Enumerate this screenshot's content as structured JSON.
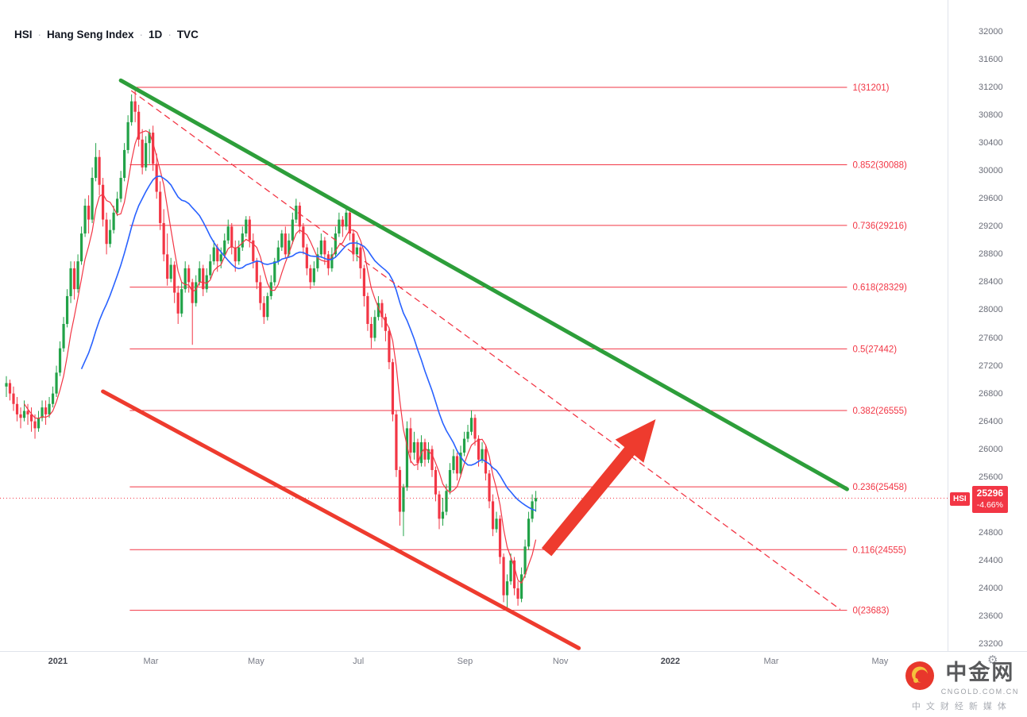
{
  "title": {
    "symbol": "HSI",
    "separator": "·",
    "name": "Hang Seng Index",
    "interval": "1D",
    "exchange": "TVC"
  },
  "watermark": {
    "brand": "中金网",
    "domain": "CNGOLD.COM.CN",
    "tagline": "中文财经新媒体"
  },
  "icons": {
    "gear": "⚙"
  },
  "chart_data": {
    "type": "candlestick",
    "title": "HSI Hang Seng Index Daily with Fibonacci retracement and trend channel",
    "y_axis": {
      "min": 23200,
      "max": 32000,
      "tick_step": 400
    },
    "x_axis": {
      "ticks": [
        {
          "label": "2021",
          "i": 14.4
        },
        {
          "label": "Mar",
          "i": 40.4
        },
        {
          "label": "May",
          "i": 69.8
        },
        {
          "label": "Jul",
          "i": 98.4
        },
        {
          "label": "Sep",
          "i": 128.2
        },
        {
          "label": "Nov",
          "i": 154.9
        },
        {
          "label": "2022",
          "i": 185.6
        },
        {
          "label": "Mar",
          "i": 213.8
        },
        {
          "label": "May",
          "i": 244.2
        }
      ]
    },
    "colors": {
      "up": "#22a248",
      "down": "#f23645",
      "fib": "#f23645",
      "arrow": "#ee3b2e"
    },
    "fib_span_i": [
      34.5,
      235
    ],
    "fib_levels": [
      {
        "label": "1(31201)",
        "value": 31201
      },
      {
        "label": "0.852(30088)",
        "value": 30088
      },
      {
        "label": "0.736(29216)",
        "value": 29216
      },
      {
        "label": "0.618(28329)",
        "value": 28329
      },
      {
        "label": "0.5(27442)",
        "value": 27442
      },
      {
        "label": "0.382(26555)",
        "value": 26555
      },
      {
        "label": "0.236(25458)",
        "value": 25458
      },
      {
        "label": "0.116(24555)",
        "value": 24555
      },
      {
        "label": "0(23683)",
        "value": 23683
      }
    ],
    "trendlines": [
      {
        "name": "green-downtrend-line",
        "color": "#2d9e3a",
        "width": 5,
        "from": {
          "i": 32,
          "p": 31300
        },
        "to": {
          "i": 235,
          "p": 25425
        }
      },
      {
        "name": "red-dashed-trendline",
        "color": "#f23645",
        "width": 1.3,
        "dash": "7 6",
        "from": {
          "i": 35,
          "p": 31150
        },
        "to": {
          "i": 233,
          "p": 23700
        }
      },
      {
        "name": "red-channel-line",
        "color": "#ee3b2e",
        "width": 5,
        "from": {
          "i": 27,
          "p": 26830
        },
        "to": {
          "i": 160,
          "p": 23140
        }
      }
    ],
    "arrow": {
      "from": {
        "i": 151,
        "p": 24520
      },
      "to": {
        "i": 181.5,
        "p": 26430
      }
    },
    "last_price": {
      "tag": "HSI",
      "value": 25296,
      "change_pct": "-4.66%"
    },
    "ma_overlays": [
      {
        "name": "ma-fast-line",
        "period": 6,
        "color": "#f23645",
        "width": 1.2
      },
      {
        "name": "ma-slow-line",
        "period": 22,
        "color": "#2962ff",
        "width": 1.6
      }
    ],
    "ohlc": [
      [
        26900,
        27050,
        26750,
        26950
      ],
      [
        26950,
        27000,
        26700,
        26800
      ],
      [
        26800,
        26900,
        26550,
        26650
      ],
      [
        26650,
        26750,
        26400,
        26500
      ],
      [
        26500,
        26600,
        26300,
        26450
      ],
      [
        26450,
        26700,
        26400,
        26550
      ],
      [
        26550,
        26650,
        26350,
        26500
      ],
      [
        26500,
        26600,
        26250,
        26400
      ],
      [
        26400,
        26500,
        26150,
        26300
      ],
      [
        26300,
        26550,
        26250,
        26450
      ],
      [
        26450,
        26700,
        26400,
        26600
      ],
      [
        26600,
        26700,
        26350,
        26500
      ],
      [
        26500,
        26750,
        26450,
        26650
      ],
      [
        26650,
        26900,
        26600,
        26800
      ],
      [
        26800,
        27200,
        26750,
        27100
      ],
      [
        27100,
        27550,
        27050,
        27450
      ],
      [
        27450,
        27900,
        27400,
        27800
      ],
      [
        27800,
        28300,
        27750,
        28200
      ],
      [
        28200,
        28700,
        28100,
        28600
      ],
      [
        28600,
        28700,
        28150,
        28300
      ],
      [
        28300,
        28800,
        28250,
        28700
      ],
      [
        28700,
        29200,
        28650,
        29100
      ],
      [
        29100,
        29600,
        29050,
        29500
      ],
      [
        29500,
        29650,
        29100,
        29300
      ],
      [
        29300,
        30050,
        29250,
        29900
      ],
      [
        29900,
        30400,
        29850,
        30200
      ],
      [
        30200,
        30300,
        29650,
        29800
      ],
      [
        29800,
        29900,
        29200,
        29300
      ],
      [
        29300,
        29400,
        28800,
        28950
      ],
      [
        28950,
        29300,
        28900,
        29150
      ],
      [
        29150,
        29500,
        29100,
        29400
      ],
      [
        29400,
        29700,
        29350,
        29600
      ],
      [
        29600,
        30000,
        29550,
        29900
      ],
      [
        29900,
        30400,
        29850,
        30300
      ],
      [
        30300,
        30800,
        30250,
        30700
      ],
      [
        30700,
        31100,
        30650,
        31000
      ],
      [
        31000,
        31201,
        30700,
        30850
      ],
      [
        30850,
        30950,
        30350,
        30450
      ],
      [
        30450,
        30600,
        29950,
        30050
      ],
      [
        30050,
        30500,
        30000,
        30400
      ],
      [
        30400,
        30600,
        30100,
        30550
      ],
      [
        30550,
        30650,
        30000,
        30100
      ],
      [
        30100,
        30250,
        29600,
        29700
      ],
      [
        29700,
        29850,
        29150,
        29250
      ],
      [
        29250,
        29450,
        28700,
        28800
      ],
      [
        28800,
        29100,
        28350,
        28450
      ],
      [
        28450,
        28750,
        28400,
        28650
      ],
      [
        28650,
        28700,
        28100,
        28250
      ],
      [
        28250,
        28350,
        27800,
        27950
      ],
      [
        27950,
        28400,
        27900,
        28300
      ],
      [
        28300,
        28700,
        28250,
        28600
      ],
      [
        28600,
        28650,
        28250,
        28400
      ],
      [
        28400,
        28450,
        27500,
        28100
      ],
      [
        28100,
        28500,
        28050,
        28400
      ],
      [
        28400,
        28700,
        28350,
        28600
      ],
      [
        28600,
        28650,
        28200,
        28300
      ],
      [
        28300,
        28600,
        28250,
        28500
      ],
      [
        28500,
        28800,
        28450,
        28700
      ],
      [
        28700,
        29000,
        28650,
        28900
      ],
      [
        28900,
        28950,
        28550,
        28700
      ],
      [
        28700,
        28900,
        28600,
        28800
      ],
      [
        28800,
        29100,
        28750,
        29000
      ],
      [
        29000,
        29300,
        28950,
        29200
      ],
      [
        29200,
        29250,
        28800,
        28900
      ],
      [
        28900,
        29000,
        28550,
        28700
      ],
      [
        28700,
        29000,
        28650,
        28900
      ],
      [
        28900,
        29200,
        28850,
        29100
      ],
      [
        29100,
        29350,
        29050,
        29300
      ],
      [
        29300,
        29350,
        28900,
        29000
      ],
      [
        29000,
        29100,
        28600,
        28700
      ],
      [
        28700,
        28750,
        28300,
        28400
      ],
      [
        28400,
        28500,
        28000,
        28100
      ],
      [
        28100,
        28200,
        27800,
        27900
      ],
      [
        27900,
        28250,
        27850,
        28200
      ],
      [
        28200,
        28500,
        28150,
        28400
      ],
      [
        28400,
        28750,
        28350,
        28700
      ],
      [
        28700,
        29000,
        28650,
        28900
      ],
      [
        28900,
        29150,
        28850,
        29100
      ],
      [
        29100,
        29200,
        28750,
        28800
      ],
      [
        28800,
        29100,
        28750,
        29000
      ],
      [
        29000,
        29400,
        28950,
        29300
      ],
      [
        29300,
        29600,
        29250,
        29500
      ],
      [
        29500,
        29550,
        29100,
        29200
      ],
      [
        29200,
        29250,
        28800,
        28900
      ],
      [
        28900,
        28950,
        28500,
        28600
      ],
      [
        28600,
        28650,
        28300,
        28400
      ],
      [
        28400,
        28700,
        28350,
        28600
      ],
      [
        28600,
        28900,
        28550,
        28800
      ],
      [
        28800,
        29100,
        28750,
        29000
      ],
      [
        29000,
        29050,
        28650,
        28800
      ],
      [
        28800,
        28850,
        28500,
        28600
      ],
      [
        28600,
        28900,
        28550,
        28800
      ],
      [
        28800,
        29200,
        28750,
        29100
      ],
      [
        29100,
        29400,
        29050,
        29300
      ],
      [
        29300,
        29350,
        29050,
        29200
      ],
      [
        29200,
        29450,
        29150,
        29400
      ],
      [
        29400,
        29420,
        29000,
        29100
      ],
      [
        29100,
        29150,
        28700,
        28800
      ],
      [
        28800,
        29000,
        28700,
        28900
      ],
      [
        28900,
        28950,
        28450,
        28600
      ],
      [
        28600,
        28650,
        28050,
        28200
      ],
      [
        28200,
        28250,
        27700,
        27800
      ],
      [
        27800,
        27900,
        27450,
        27600
      ],
      [
        27600,
        28000,
        27550,
        27900
      ],
      [
        27900,
        28200,
        27850,
        28100
      ],
      [
        28100,
        28150,
        27750,
        27900
      ],
      [
        27900,
        27950,
        27550,
        27700
      ],
      [
        27700,
        27750,
        27150,
        27250
      ],
      [
        27250,
        27300,
        26400,
        26500
      ],
      [
        26500,
        26550,
        25600,
        25700
      ],
      [
        25700,
        25750,
        24900,
        25100
      ],
      [
        25100,
        25500,
        24750,
        25450
      ],
      [
        25450,
        26400,
        25400,
        26300
      ],
      [
        26300,
        26450,
        25800,
        25950
      ],
      [
        25950,
        26250,
        25850,
        26100
      ],
      [
        26100,
        26150,
        25700,
        25800
      ],
      [
        25800,
        26200,
        25750,
        26100
      ],
      [
        26100,
        26150,
        25750,
        25850
      ],
      [
        25850,
        26100,
        25800,
        26000
      ],
      [
        26000,
        26050,
        25600,
        25700
      ],
      [
        25700,
        25750,
        25250,
        25350
      ],
      [
        25350,
        25400,
        24850,
        25000
      ],
      [
        25000,
        25300,
        24900,
        25100
      ],
      [
        25100,
        25500,
        25050,
        25400
      ],
      [
        25400,
        25800,
        25350,
        25700
      ],
      [
        25700,
        26000,
        25650,
        25900
      ],
      [
        25900,
        25950,
        25550,
        25650
      ],
      [
        25650,
        26050,
        25600,
        25950
      ],
      [
        25950,
        26250,
        25900,
        26150
      ],
      [
        26150,
        26350,
        26100,
        26250
      ],
      [
        26250,
        26560,
        26200,
        26450
      ],
      [
        26450,
        26500,
        26050,
        26150
      ],
      [
        26150,
        26200,
        25750,
        25850
      ],
      [
        25850,
        26100,
        25800,
        26000
      ],
      [
        26000,
        26050,
        25550,
        25650
      ],
      [
        25650,
        25700,
        25150,
        25250
      ],
      [
        25250,
        25350,
        24750,
        24850
      ],
      [
        24850,
        25100,
        24800,
        25000
      ],
      [
        25000,
        25050,
        24350,
        24450
      ],
      [
        24450,
        24500,
        23800,
        23900
      ],
      [
        23900,
        24200,
        23683,
        24100
      ],
      [
        24100,
        24500,
        24050,
        24400
      ],
      [
        24400,
        24450,
        23900,
        24000
      ],
      [
        24000,
        24100,
        23750,
        23850
      ],
      [
        23850,
        24300,
        23800,
        24200
      ],
      [
        24200,
        24700,
        24150,
        24600
      ],
      [
        24600,
        25100,
        24550,
        25000
      ],
      [
        25000,
        25350,
        24950,
        25250
      ],
      [
        25250,
        25400,
        25100,
        25296
      ]
    ]
  }
}
